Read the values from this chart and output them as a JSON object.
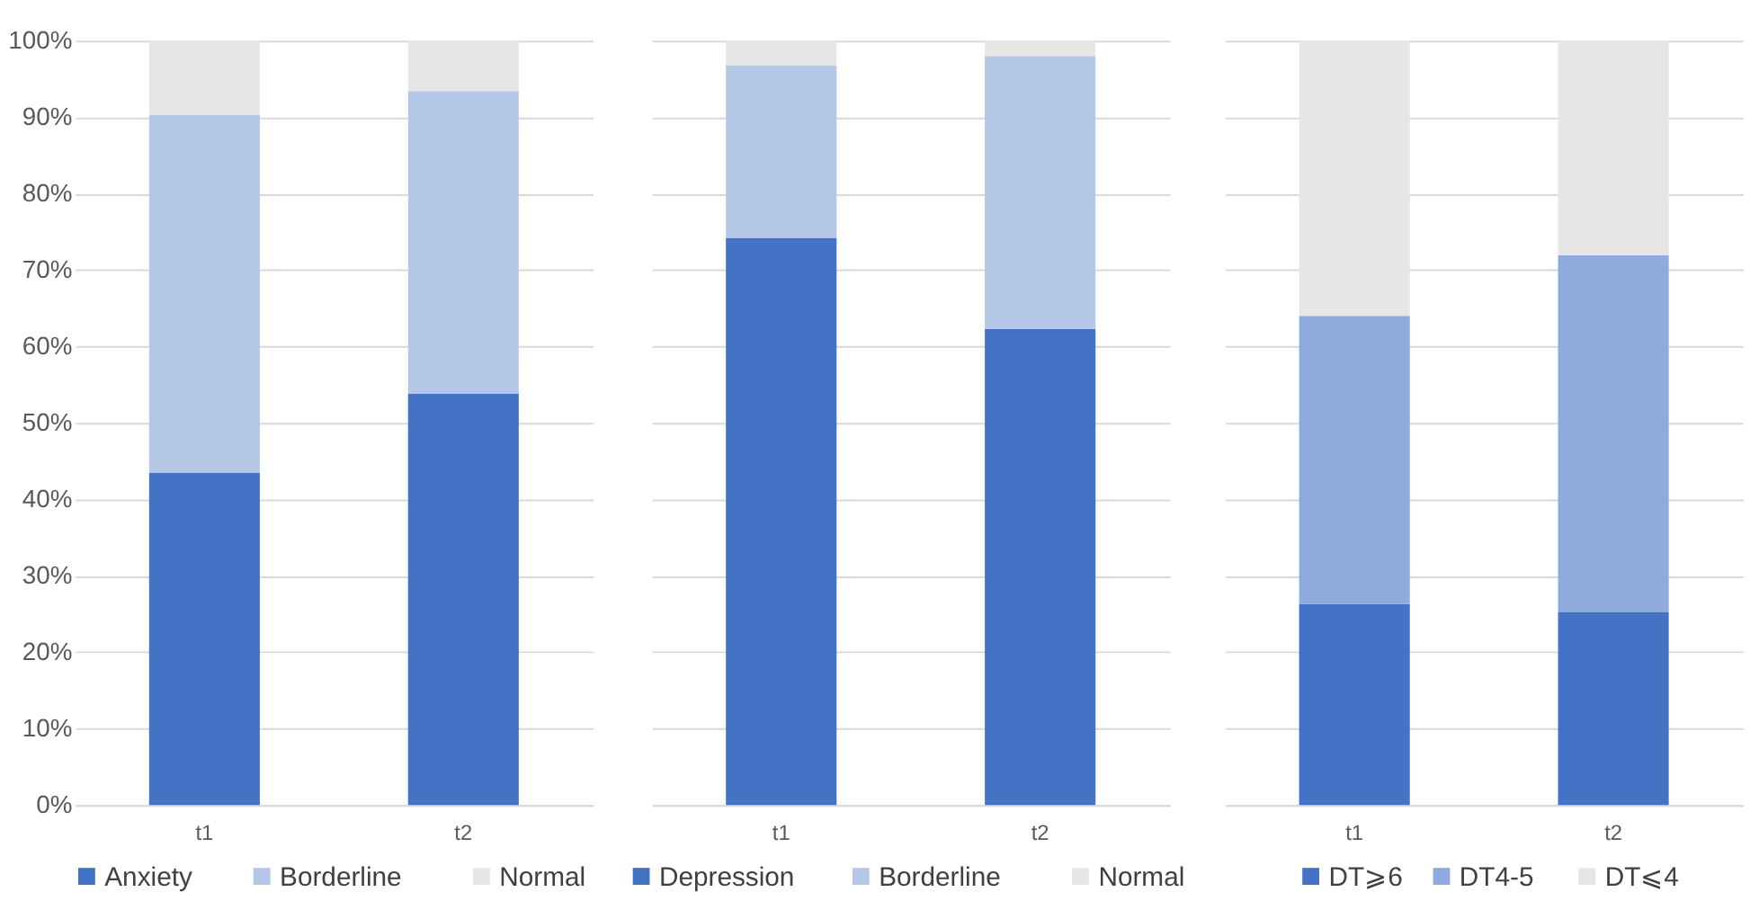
{
  "chart_data": [
    {
      "type": "bar",
      "stacked": true,
      "categories": [
        "t1",
        "t2"
      ],
      "ylim": [
        0,
        100
      ],
      "yticks": [
        {
          "value": 0,
          "label": "0%"
        },
        {
          "value": 10,
          "label": "10%"
        },
        {
          "value": 20,
          "label": "20%"
        },
        {
          "value": 30,
          "label": "30%"
        },
        {
          "value": 40,
          "label": "40%"
        },
        {
          "value": 50,
          "label": "50%"
        },
        {
          "value": 60,
          "label": "60%"
        },
        {
          "value": 70,
          "label": "70%"
        },
        {
          "value": 80,
          "label": "80%"
        },
        {
          "value": 90,
          "label": "90%"
        },
        {
          "value": 100,
          "label": "100%"
        }
      ],
      "grid": "y",
      "legend": "bottom",
      "series": [
        {
          "name": "Anxiety",
          "color": "#4472c4",
          "values": [
            43.5,
            53.8
          ]
        },
        {
          "name": "Borderline",
          "color": "#b4c7e7",
          "values": [
            46.8,
            39.6
          ]
        },
        {
          "name": "Normal",
          "color": "#e7e6e6",
          "values": [
            9.7,
            6.6
          ]
        }
      ]
    },
    {
      "type": "bar",
      "stacked": true,
      "categories": [
        "t1",
        "t2"
      ],
      "ylim": [
        0,
        100
      ],
      "yticks": [
        0,
        10,
        20,
        30,
        40,
        50,
        60,
        70,
        80,
        90,
        100
      ],
      "grid": "y",
      "legend": "bottom",
      "tick_labels": "x",
      "series": [
        {
          "name": "Depression",
          "color": "#4472c4",
          "values": [
            74.2,
            62.3
          ]
        },
        {
          "name": "Borderline",
          "color": "#b4c7e7",
          "values": [
            22.6,
            35.7
          ]
        },
        {
          "name": "Normal",
          "color": "#e7e6e6",
          "values": [
            3.2,
            2.0
          ]
        }
      ]
    },
    {
      "type": "bar",
      "stacked": true,
      "categories": [
        "t1",
        "t2"
      ],
      "ylim": [
        0,
        100
      ],
      "yticks": [
        0,
        10,
        20,
        30,
        40,
        50,
        60,
        70,
        80,
        90,
        100
      ],
      "grid": "y",
      "legend": "bottom",
      "tick_labels": "x",
      "series": [
        {
          "name": "DT⩾6",
          "color": "#4472c4",
          "values": [
            26.3,
            25.2
          ]
        },
        {
          "name": "DT4-5",
          "color": "#8faadc",
          "values": [
            37.7,
            46.7
          ]
        },
        {
          "name": "DT⩽4",
          "color": "#e7e6e6",
          "values": [
            36.0,
            28.1
          ]
        }
      ]
    }
  ]
}
